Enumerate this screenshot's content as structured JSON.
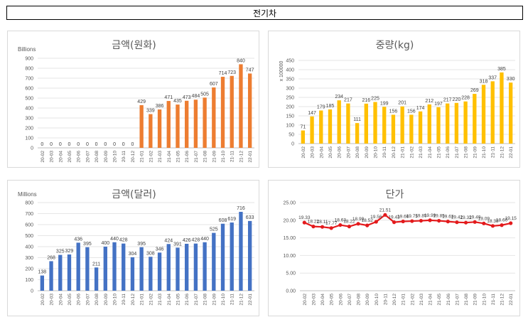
{
  "banner": {
    "title": "전기차"
  },
  "chart_data": [
    {
      "type": "bar",
      "title": "금액(원화)",
      "unit_label": "Billions",
      "color": "#ED7D31",
      "ylim": [
        0,
        900
      ],
      "yticks": [
        0,
        100,
        200,
        300,
        400,
        500,
        600,
        700,
        800,
        900
      ],
      "ytick_labels": [
        "0",
        "100",
        "200",
        "300",
        "400",
        "500",
        "600",
        "700",
        "800",
        "900"
      ],
      "grid": true,
      "categories": [
        "20-02",
        "20-03",
        "20-04",
        "20-05",
        "20-06",
        "20-07",
        "20-08",
        "20-09",
        "20-10",
        "20-11",
        "20-12",
        "21-01",
        "21-02",
        "21-03",
        "21-04",
        "21-05",
        "21-06",
        "21-07",
        "21-08",
        "21-09",
        "21-10",
        "21-11",
        "21-12",
        "22-01"
      ],
      "values": [
        0,
        0,
        0,
        0,
        0,
        0,
        0,
        0,
        0,
        0,
        0,
        429,
        339,
        386,
        471,
        435,
        473,
        484,
        505,
        607,
        714,
        723,
        840,
        747
      ]
    },
    {
      "type": "bar",
      "title": "중량(kg)",
      "unit_label": "x 100000",
      "color": "#FFC000",
      "ylim": [
        0,
        450
      ],
      "yticks": [
        0,
        50,
        100,
        150,
        200,
        250,
        300,
        350,
        400,
        450
      ],
      "ytick_labels": [
        "0",
        "50",
        "100",
        "150",
        "200",
        "250",
        "300",
        "350",
        "400",
        "450"
      ],
      "grid": true,
      "categories": [
        "20-02",
        "20-03",
        "20-04",
        "20-05",
        "20-06",
        "20-07",
        "20-08",
        "20-09",
        "20-10",
        "20-11",
        "20-12",
        "21-01",
        "21-02",
        "21-03",
        "21-04",
        "21-05",
        "21-06",
        "21-07",
        "21-08",
        "21-09",
        "21-10",
        "21-11",
        "21-12",
        "22-01"
      ],
      "values": [
        71,
        147,
        179,
        185,
        234,
        217,
        111,
        216,
        225,
        199,
        156,
        201,
        156,
        174,
        212,
        197,
        217,
        220,
        228,
        269,
        318,
        337,
        385,
        330
      ]
    },
    {
      "type": "bar",
      "title": "금액(달러)",
      "unit_label": "Millions",
      "color": "#4472C4",
      "ylim": [
        0,
        800
      ],
      "yticks": [
        0,
        100,
        200,
        300,
        400,
        500,
        600,
        700,
        800
      ],
      "ytick_labels": [
        "0",
        "100",
        "200",
        "300",
        "400",
        "500",
        "600",
        "700",
        "800"
      ],
      "grid": true,
      "categories": [
        "20-02",
        "20-03",
        "20-04",
        "20-05",
        "20-06",
        "20-07",
        "20-08",
        "20-09",
        "20-10",
        "20-11",
        "20-12",
        "21-01",
        "21-02",
        "21-03",
        "21-04",
        "21-05",
        "21-06",
        "21-07",
        "21-08",
        "21-09",
        "21-10",
        "21-11",
        "21-12",
        "22-01"
      ],
      "values": [
        138,
        268,
        325,
        329,
        436,
        395,
        211,
        400,
        440,
        428,
        304,
        395,
        308,
        346,
        424,
        391,
        426,
        428,
        440,
        525,
        608,
        619,
        716,
        633
      ]
    },
    {
      "type": "line",
      "title": "단가",
      "unit_label": "",
      "color": "#E31A1C",
      "ylim": [
        0,
        25
      ],
      "yticks": [
        0,
        5,
        10,
        15,
        20,
        25
      ],
      "ytick_labels": [
        "0.00",
        "5.00",
        "10.00",
        "15.00",
        "20.00",
        "25.00"
      ],
      "grid": true,
      "categories": [
        "20-02",
        "20-03",
        "20-04",
        "20-05",
        "20-06",
        "20-07",
        "20-08",
        "20-09",
        "20-10",
        "20-11",
        "20-12",
        "21-01",
        "21-02",
        "21-03",
        "21-04",
        "21-05",
        "21-06",
        "21-07",
        "21-08",
        "21-09",
        "21-10",
        "21-11",
        "21-12",
        "22-01"
      ],
      "values": [
        19.33,
        18.22,
        18.11,
        17.77,
        18.63,
        18.22,
        18.99,
        18.52,
        19.56,
        21.51,
        19.43,
        19.66,
        19.75,
        19.85,
        19.99,
        19.85,
        19.63,
        19.42,
        19.32,
        19.49,
        19.09,
        18.38,
        18.6,
        19.15
      ],
      "data_labels": [
        "19.33",
        "18.22",
        "18.11",
        "17.77",
        "18.63",
        "18.22",
        "18.99",
        "18.52",
        "19.56",
        "21.51",
        "19.43",
        "19.66",
        "19.75",
        "19.85",
        "19.99",
        "19.85",
        "19.63",
        "19.42",
        "19.32",
        "19.49",
        "19.09",
        "18.38",
        "18.60",
        "19.15"
      ]
    }
  ]
}
